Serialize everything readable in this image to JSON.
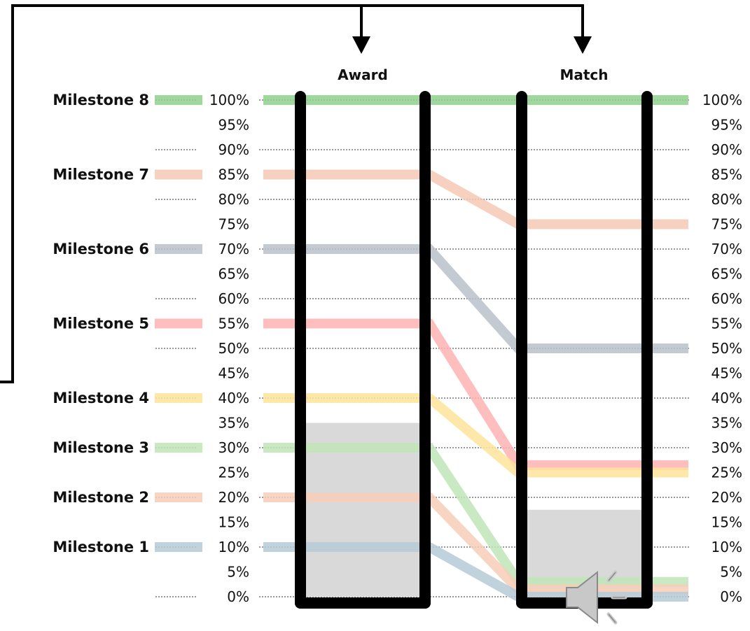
{
  "columns": {
    "award": "Award",
    "match": "Match"
  },
  "ticks": [
    "100%",
    "95%",
    "90%",
    "85%",
    "80%",
    "75%",
    "70%",
    "65%",
    "60%",
    "55%",
    "50%",
    "45%",
    "40%",
    "35%",
    "30%",
    "25%",
    "20%",
    "15%",
    "10%",
    "5%",
    "0%"
  ],
  "chart_data": {
    "type": "diagram",
    "ylim": [
      0,
      100
    ],
    "award_progress_percent": 35,
    "match_progress_percent": 17.5,
    "milestones": [
      {
        "label": "Milestone 8",
        "award_percent": 100,
        "match_percent": 100,
        "color": "#8ed08e"
      },
      {
        "label": "Milestone 7",
        "award_percent": 85,
        "match_percent": 75,
        "color": "#f5c9b4"
      },
      {
        "label": "Milestone 6",
        "award_percent": 70,
        "match_percent": 50,
        "color": "#b9c1c9"
      },
      {
        "label": "Milestone 5",
        "award_percent": 55,
        "match_percent": 26.5,
        "color": "#ffb3b3"
      },
      {
        "label": "Milestone 4",
        "award_percent": 40,
        "match_percent": 25,
        "color": "#fde39a"
      },
      {
        "label": "Milestone 3",
        "award_percent": 30,
        "match_percent": 3,
        "color": "#bfe5b9"
      },
      {
        "label": "Milestone 2",
        "award_percent": 20,
        "match_percent": 1.5,
        "color": "#f7cdb8"
      },
      {
        "label": "Milestone 1",
        "award_percent": 10,
        "match_percent": 0,
        "color": "#b5cbd6"
      }
    ]
  },
  "icons": {
    "speaker": "speaker-icon",
    "bracket_arrows": "arrow-down-icon"
  },
  "colors": {
    "frame": "#000000",
    "progress_fill": "#d9d9d9",
    "gridline": "#333333"
  }
}
